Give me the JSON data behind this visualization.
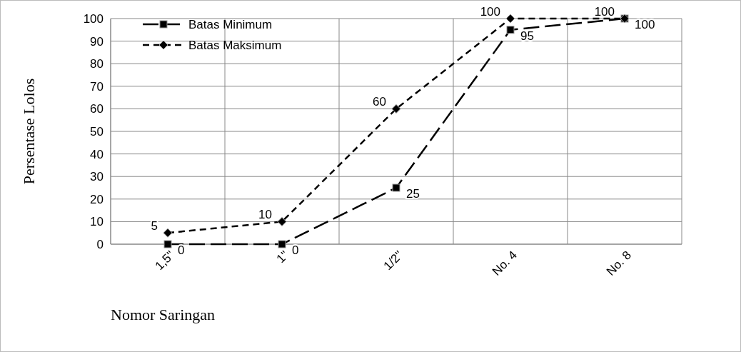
{
  "chart_data": {
    "type": "line",
    "xlabel": "Nomor Saringan",
    "ylabel": "Persentase Lolos",
    "categories": [
      "1,5\"",
      "1\"",
      "1/2\"",
      "No. 4",
      "No. 8"
    ],
    "series": [
      {
        "name": "Batas Minimum",
        "color": "#000000",
        "values": [
          0,
          0,
          25,
          95,
          100
        ],
        "marker": "square",
        "line_style": "dashed"
      },
      {
        "name": "Batas Maksimum",
        "color": "#000000",
        "values": [
          5,
          10,
          60,
          100,
          100
        ],
        "marker": "diamond",
        "line_style": "dashed"
      }
    ],
    "ylim": [
      0,
      100
    ],
    "yticks": [
      0,
      10,
      20,
      30,
      40,
      50,
      60,
      70,
      80,
      90,
      100
    ],
    "grid": true,
    "legend": "top left",
    "data_labels": true
  }
}
